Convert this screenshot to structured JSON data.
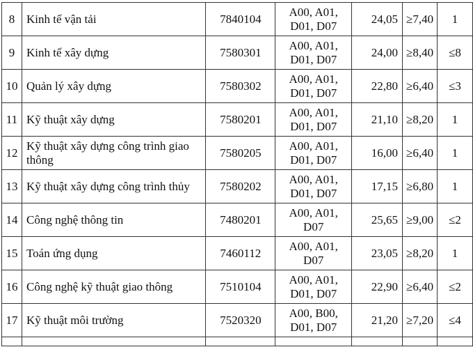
{
  "rows": [
    {
      "no": "8",
      "name": "Kinh tế vận tải",
      "code": "7840104",
      "combos": "A00, A01, D01, D07",
      "score": "24,05",
      "criteria": "≥7,40",
      "priority": "1"
    },
    {
      "no": "9",
      "name": "Kinh tế xây dựng",
      "code": "7580301",
      "combos": "A00, A01, D01, D07",
      "score": "24,00",
      "criteria": "≥8,40",
      "priority": "≤8"
    },
    {
      "no": "10",
      "name": "Quản lý xây dựng",
      "code": "7580302",
      "combos": "A00, A01, D01, D07",
      "score": "22,80",
      "criteria": "≥6,40",
      "priority": "≤3"
    },
    {
      "no": "11",
      "name": "Kỹ thuật xây dựng",
      "code": "7580201",
      "combos": "A00, A01, D01, D07",
      "score": "21,10",
      "criteria": "≥8,20",
      "priority": "1"
    },
    {
      "no": "12",
      "name": "Kỹ thuật xây dựng công trình giao thông",
      "code": "7580205",
      "combos": "A00, A01, D01, D07",
      "score": "16,00",
      "criteria": "≥6,40",
      "priority": "1"
    },
    {
      "no": "13",
      "name": "Kỹ thuật xây dựng công trình thủy",
      "code": "7580202",
      "combos": "A00, A01, D01, D07",
      "score": "17,15",
      "criteria": "≥6,80",
      "priority": "1"
    },
    {
      "no": "14",
      "name": "Công nghệ thông tin",
      "code": "7480201",
      "combos": "A00, A01, D07",
      "score": "25,65",
      "criteria": "≥9,00",
      "priority": "≤2"
    },
    {
      "no": "15",
      "name": "Toán ứng dụng",
      "code": "7460112",
      "combos": "A00, A01, D07",
      "score": "23,05",
      "criteria": "≥8,20",
      "priority": "1"
    },
    {
      "no": "16",
      "name": "Công nghệ kỹ thuật giao thông",
      "code": "7510104",
      "combos": "A00, A01, D01, D07",
      "score": "22,90",
      "criteria": "≥6,40",
      "priority": "≤2"
    },
    {
      "no": "17",
      "name": "Kỹ thuật môi trường",
      "code": "7520320",
      "combos": "A00, B00, D01, D07",
      "score": "21,20",
      "criteria": "≥7,20",
      "priority": "≤4"
    }
  ]
}
